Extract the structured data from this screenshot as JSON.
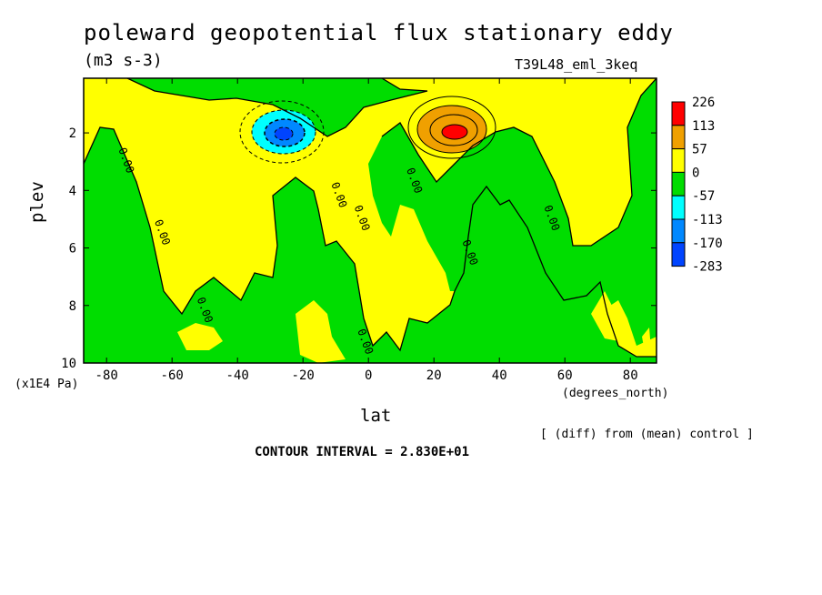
{
  "header": {
    "title": "poleward geopotential flux stationary eddy",
    "units": "(m3 s-3)",
    "run": "T39L48_eml_3keq"
  },
  "axes": {
    "xlabel": "lat",
    "ylabel": "plev",
    "xunit": "(degrees_north)",
    "yunit": "(x1E4 Pa)"
  },
  "footer": {
    "note": "[ (diff) from (mean) control ]",
    "contour_interval": "CONTOUR INTERVAL = 2.830E+01"
  },
  "chart_data": {
    "type": "heatmap",
    "title": "poleward geopotential flux stationary eddy",
    "xlabel": "lat",
    "ylabel": "plev",
    "x_ticks": [
      -80,
      -60,
      -40,
      -20,
      0,
      20,
      40,
      60,
      80
    ],
    "y_ticks": [
      2,
      4,
      6,
      8,
      10
    ],
    "xlim": [
      -87,
      88
    ],
    "ylim": [
      10,
      0.1
    ],
    "colorbar": {
      "levels": [
        "226",
        "113",
        "57",
        "0",
        "-57",
        "-113",
        "-170",
        "-283"
      ],
      "colors": [
        "#ff0000",
        "#f0a000",
        "#ffff00",
        "#00dd00",
        "#00ffff",
        "#0088ff",
        "#0044ff"
      ]
    },
    "contour_labels": [
      {
        "text": "0.00",
        "lat": -75,
        "plev": 3.0
      },
      {
        "text": "0.00",
        "lat": -64,
        "plev": 5.5
      },
      {
        "text": "0.00",
        "lat": -51,
        "plev": 8.2
      },
      {
        "text": "0.00",
        "lat": -10,
        "plev": 4.2
      },
      {
        "text": "0.00",
        "lat": -3,
        "plev": 5.0
      },
      {
        "text": "0.00",
        "lat": -2,
        "plev": 9.3
      },
      {
        "text": "0.00",
        "lat": 13,
        "plev": 3.7
      },
      {
        "text": "0.00",
        "lat": 30,
        "plev": 6.2
      },
      {
        "text": "0.00",
        "lat": 55,
        "plev": 5.0
      }
    ],
    "extrema": [
      {
        "sign": "negative",
        "lat": -26,
        "plev": 1.9,
        "min_level": "-283"
      },
      {
        "sign": "positive",
        "lat": 27,
        "plev": 1.9,
        "max_level": "226"
      }
    ],
    "contour_interval": 28.3
  }
}
